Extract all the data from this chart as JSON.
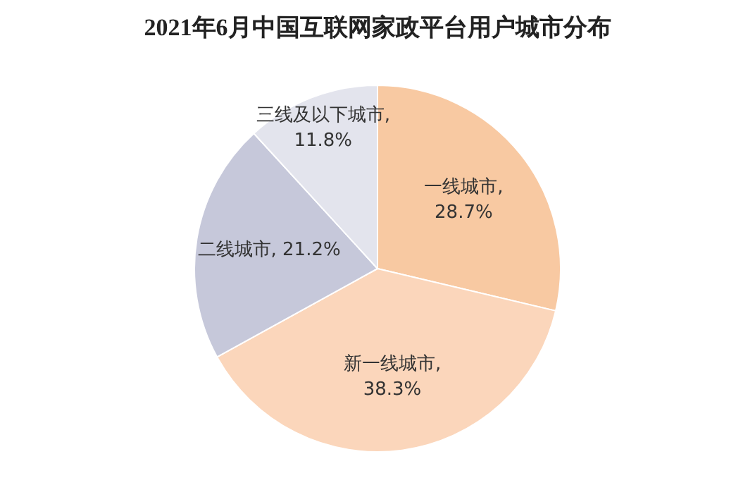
{
  "chart_data": {
    "type": "pie",
    "title": "2021年6月中国互联网家政平台用户城市分布",
    "categories": [
      "一线城市",
      "新一线城市",
      "二线城市",
      "三线及以下城市"
    ],
    "values": [
      28.7,
      38.3,
      21.2,
      11.8
    ],
    "value_labels": [
      ", 28.7%",
      ", 38.3%",
      ", 21.2%",
      ", 11.8%"
    ],
    "colors": [
      "#f8c9a2",
      "#fbd6bb",
      "#c6c8da",
      "#e3e4ed"
    ],
    "legend": false
  }
}
